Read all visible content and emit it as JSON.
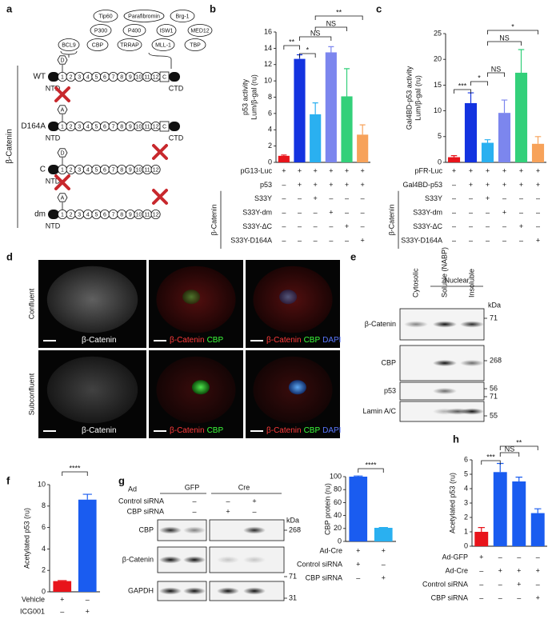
{
  "panel_labels": [
    "a",
    "b",
    "c",
    "d",
    "e",
    "f",
    "g",
    "h"
  ],
  "diagram": {
    "group_label": "β-Catenin",
    "partners": [
      "Tip60",
      "Parafibromin",
      "Brg-1",
      "P300",
      "P400",
      "ISW1",
      "MED12",
      "CBP",
      "TRRAP",
      "MLL-1",
      "TBP"
    ],
    "bcl9": "BCL9",
    "site_labels": [
      "D",
      "A"
    ],
    "c_box": "C",
    "repeats": [
      "1",
      "2",
      "3",
      "4",
      "5",
      "6",
      "7",
      "8",
      "9",
      "10",
      "11",
      "12"
    ],
    "constructs": [
      "WT",
      "D164A",
      "C",
      "dm"
    ],
    "ntd": "NTD",
    "ctd": "CTD"
  },
  "chart_data": [
    {
      "type": "bar",
      "y_label": [
        "p53 activity",
        "Lum/β-gal (ru)"
      ],
      "values": [
        0.8,
        12.7,
        5.9,
        13.5,
        8.1,
        3.4
      ],
      "errors": [
        0.1,
        0.5,
        1.4,
        0.7,
        3.4,
        1.2
      ],
      "colors": [
        "#e8141b",
        "#1333e0",
        "#2ab0f0",
        "#7c86ee",
        "#33d07a",
        "#f7a25a"
      ],
      "ylim": [
        0,
        16
      ],
      "yticks": [
        0,
        2,
        4,
        6,
        8,
        10,
        12,
        14,
        16
      ],
      "significance": [
        "**",
        "*",
        "NS",
        "NS",
        "**"
      ],
      "conditions": [
        {
          "label": "pG13-Luc",
          "signs": [
            "+",
            "+",
            "+",
            "+",
            "+",
            "+"
          ]
        },
        {
          "label": "p53",
          "signs": [
            "–",
            "+",
            "+",
            "+",
            "+",
            "+"
          ]
        },
        {
          "label": "S33Y",
          "signs": [
            "–",
            "–",
            "+",
            "–",
            "–",
            "–"
          ]
        },
        {
          "label": "S33Y-dm",
          "signs": [
            "–",
            "–",
            "–",
            "+",
            "–",
            "–"
          ]
        },
        {
          "label": "S33Y-ΔC",
          "signs": [
            "–",
            "–",
            "–",
            "–",
            "+",
            "–"
          ]
        },
        {
          "label": "S33Y-D164A",
          "signs": [
            "–",
            "–",
            "–",
            "–",
            "–",
            "+"
          ]
        }
      ],
      "group_label": "β-Catenin"
    },
    {
      "type": "bar",
      "y_label": [
        "Gal4BD-p53 activity",
        "Lum/β-gal (ru)"
      ],
      "values": [
        1.0,
        11.5,
        3.8,
        9.6,
        17.4,
        3.6
      ],
      "errors": [
        0.3,
        2.0,
        0.6,
        2.5,
        4.5,
        1.4
      ],
      "colors": [
        "#e8141b",
        "#1333e0",
        "#2ab0f0",
        "#7c86ee",
        "#33d07a",
        "#f7a25a"
      ],
      "ylim": [
        0,
        25
      ],
      "yticks": [
        0,
        5,
        10,
        15,
        20,
        25
      ],
      "significance": [
        "***",
        "*",
        "NS",
        "NS",
        "*"
      ],
      "conditions": [
        {
          "label": "pFR-Luc",
          "signs": [
            "+",
            "+",
            "+",
            "+",
            "+",
            "+"
          ]
        },
        {
          "label": "Gal4BD-p53",
          "signs": [
            "–",
            "+",
            "+",
            "+",
            "+",
            "+"
          ]
        },
        {
          "label": "S33Y",
          "signs": [
            "–",
            "–",
            "+",
            "–",
            "–",
            "–"
          ]
        },
        {
          "label": "S33Y-dm",
          "signs": [
            "–",
            "–",
            "–",
            "+",
            "–",
            "–"
          ]
        },
        {
          "label": "S33Y-ΔC",
          "signs": [
            "–",
            "–",
            "–",
            "–",
            "+",
            "–"
          ]
        },
        {
          "label": "S33Y-D164A",
          "signs": [
            "–",
            "–",
            "–",
            "–",
            "–",
            "+"
          ]
        }
      ],
      "group_label": "β-Catenin"
    },
    {
      "type": "bar",
      "y_label": [
        "Acetylated p53 (ru)"
      ],
      "values": [
        1.0,
        8.6
      ],
      "errors": [
        0.05,
        0.5
      ],
      "colors": [
        "#e8141b",
        "#1a5cf0"
      ],
      "ylim": [
        0,
        10
      ],
      "yticks": [
        0,
        2,
        4,
        6,
        8,
        10
      ],
      "significance": [
        "****"
      ],
      "conditions": [
        {
          "label": "Vehicle",
          "signs": [
            "+",
            "–"
          ]
        },
        {
          "label": "ICG001",
          "signs": [
            "–",
            "+"
          ]
        }
      ]
    },
    {
      "type": "bar",
      "y_label": [
        "CBP protein (ru)"
      ],
      "values": [
        100,
        21
      ],
      "errors": [
        1,
        0.5
      ],
      "colors": [
        "#1a5cf0",
        "#2ab0f0"
      ],
      "ylim": [
        0,
        100
      ],
      "yticks": [
        0,
        20,
        40,
        60,
        80,
        100
      ],
      "significance": [
        "****"
      ],
      "conditions": [
        {
          "label": "Ad-Cre",
          "signs": [
            "+",
            "+"
          ]
        },
        {
          "label": "Control siRNA",
          "signs": [
            "+",
            "–"
          ]
        },
        {
          "label": "CBP siRNA",
          "signs": [
            "–",
            "+"
          ]
        }
      ]
    },
    {
      "type": "bar",
      "y_label": [
        "Acetylated p53 (ru)"
      ],
      "values": [
        1.0,
        5.15,
        4.5,
        2.3
      ],
      "errors": [
        0.3,
        0.6,
        0.3,
        0.3
      ],
      "colors": [
        "#e8141b",
        "#1a5cf0",
        "#1a5cf0",
        "#1a5cf0"
      ],
      "ylim": [
        0,
        6
      ],
      "yticks": [
        0,
        1,
        2,
        3,
        4,
        5,
        6
      ],
      "significance": [
        "***",
        "NS",
        "**"
      ],
      "conditions": [
        {
          "label": "Ad-GFP",
          "signs": [
            "+",
            "–",
            "–",
            "–"
          ]
        },
        {
          "label": "Ad-Cre",
          "signs": [
            "–",
            "+",
            "+",
            "+"
          ]
        },
        {
          "label": "Control siRNA",
          "signs": [
            "–",
            "–",
            "+",
            "–"
          ]
        },
        {
          "label": "CBP siRNA",
          "signs": [
            "–",
            "–",
            "–",
            "+"
          ]
        }
      ]
    }
  ],
  "microscopy": {
    "rows": [
      "Confluent",
      "Subconfluent"
    ],
    "channels": [
      [
        {
          "text": "β-Catenin",
          "color": "#ffffff"
        }
      ],
      [
        {
          "text": "β-Catenin",
          "color": "#ff3b3b"
        },
        {
          "text": "CBP",
          "color": "#3bff3b"
        }
      ],
      [
        {
          "text": "β-Catenin",
          "color": "#ff3b3b"
        },
        {
          "text": "CBP",
          "color": "#3bff3b"
        },
        {
          "text": "DAPI",
          "color": "#5a78ff"
        }
      ]
    ]
  },
  "blot_e": {
    "header": "Nuclear",
    "lanes": [
      "Cytosolic",
      "Soluble (NABP)",
      "Insoluble"
    ],
    "rows": [
      "β-Catenin",
      "CBP",
      "p53",
      "Lamin A/C"
    ],
    "kda_title": "kDa",
    "markers": [
      "71",
      "268",
      "56",
      "71",
      "55"
    ]
  },
  "blot_g": {
    "ad_label": "Ad",
    "ad_groups": [
      "GFP",
      "Cre"
    ],
    "conditions": [
      {
        "label": "Control siRNA",
        "signs": [
          "–",
          "–",
          "+"
        ]
      },
      {
        "label": "CBP siRNA",
        "signs": [
          "–",
          "+",
          "–"
        ]
      }
    ],
    "rows": [
      "CBP",
      "β-Catenin",
      "GAPDH"
    ],
    "kda_title": "kDa",
    "markers": [
      "268",
      "71",
      "31"
    ]
  }
}
